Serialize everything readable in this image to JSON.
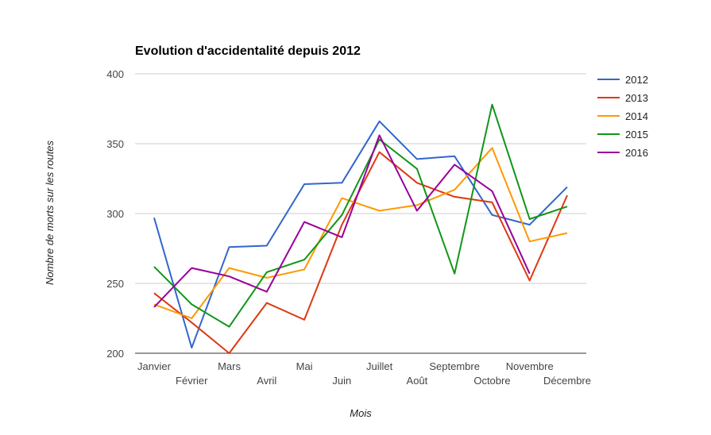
{
  "chart_data": {
    "type": "line",
    "title": "Evolution d'accidentalité depuis 2012",
    "xlabel": "Mois",
    "ylabel": "Nombre de morts sur les routes",
    "categories": [
      "Janvier",
      "Février",
      "Mars",
      "Avril",
      "Mai",
      "Juin",
      "Juillet",
      "Août",
      "Septembre",
      "Octobre",
      "Novembre",
      "Décembre"
    ],
    "ylim": [
      200,
      400
    ],
    "yticks": [
      200,
      250,
      300,
      350,
      400
    ],
    "grid": true,
    "legend": "right",
    "series": [
      {
        "name": "2012",
        "color": "#3366cc",
        "values": [
          297,
          204,
          276,
          277,
          321,
          322,
          366,
          339,
          341,
          299,
          292,
          319
        ]
      },
      {
        "name": "2013",
        "color": "#dc3912",
        "values": [
          243,
          222,
          200,
          236,
          224,
          292,
          344,
          322,
          312,
          308,
          252,
          313
        ]
      },
      {
        "name": "2014",
        "color": "#ff9900",
        "values": [
          235,
          225,
          261,
          254,
          260,
          311,
          302,
          306,
          317,
          347,
          280,
          286
        ]
      },
      {
        "name": "2015",
        "color": "#109618",
        "values": [
          262,
          235,
          219,
          258,
          267,
          299,
          353,
          332,
          257,
          378,
          296,
          305
        ]
      },
      {
        "name": "2016",
        "color": "#990099",
        "values": [
          233,
          261,
          255,
          244,
          294,
          283,
          356,
          302,
          335,
          316,
          257,
          null
        ]
      }
    ]
  }
}
